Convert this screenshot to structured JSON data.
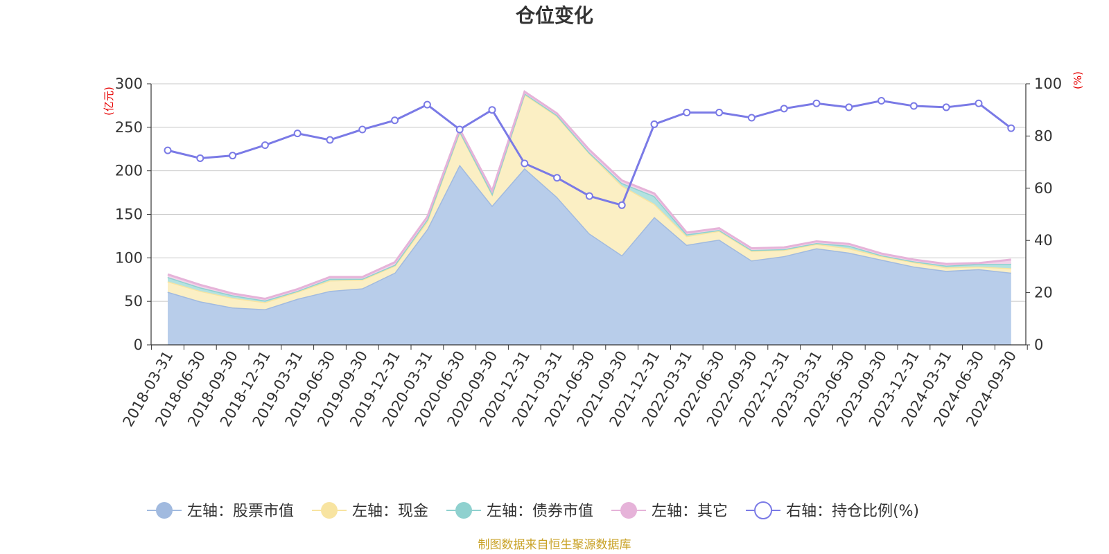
{
  "chart_data": {
    "type": "area",
    "title": "仓位变化",
    "footer": "制图数据来自恒生聚源数据库",
    "y_left": {
      "unit": "(亿元)",
      "min": 0,
      "max": 300,
      "ticks": [
        "0",
        "50",
        "100",
        "150",
        "200",
        "250",
        "300"
      ]
    },
    "y_right": {
      "unit": "(%)",
      "min": 0,
      "max": 100,
      "ticks": [
        "0",
        "20",
        "40",
        "60",
        "80",
        "100"
      ]
    },
    "categories": [
      "2018-03-31",
      "2018-06-30",
      "2018-09-30",
      "2018-12-31",
      "2019-03-31",
      "2019-06-30",
      "2019-09-30",
      "2019-12-31",
      "2020-03-31",
      "2020-06-30",
      "2020-09-30",
      "2020-12-31",
      "2021-03-31",
      "2021-06-30",
      "2021-09-30",
      "2021-12-31",
      "2022-03-31",
      "2022-06-30",
      "2022-09-30",
      "2022-12-31",
      "2023-03-31",
      "2023-06-30",
      "2023-09-30",
      "2023-12-31",
      "2024-03-31",
      "2024-06-30",
      "2024-09-30"
    ],
    "series": [
      {
        "name": "左轴：股票市值",
        "axis": "left",
        "kind": "stacked-area",
        "color": "#a1badf",
        "fill": "#b8cdea",
        "values": [
          61,
          50,
          43,
          41,
          53,
          62,
          65,
          83,
          133,
          207,
          160,
          203,
          170,
          128,
          103,
          147,
          115,
          121,
          97,
          102,
          111,
          106,
          98,
          90,
          85,
          87,
          83
        ]
      },
      {
        "name": "左轴：现金",
        "axis": "left",
        "kind": "stacked-area",
        "color": "#f8e4a1",
        "fill": "#fbefc4",
        "values": [
          12,
          12,
          11,
          8,
          8,
          12,
          10,
          8,
          9,
          38,
          13,
          85,
          93,
          92,
          80,
          15,
          10,
          10,
          11,
          7,
          5,
          5,
          4,
          5,
          4,
          3,
          5
        ]
      },
      {
        "name": "左轴：债券市值",
        "axis": "left",
        "kind": "stacked-area",
        "color": "#8fd1cf",
        "fill": "#b3e2e0",
        "values": [
          5,
          4,
          3,
          2,
          1,
          2,
          1,
          1,
          2,
          1,
          1,
          1,
          1,
          1,
          3,
          9,
          2,
          1,
          1,
          1,
          1,
          3,
          1,
          1,
          2,
          3,
          5
        ]
      },
      {
        "name": "左轴：其它",
        "axis": "left",
        "kind": "stacked-area",
        "color": "#e6b3d9",
        "fill": "#f1d3e9",
        "values": [
          3,
          3,
          2,
          2,
          2,
          2,
          2,
          3,
          3,
          2,
          3,
          2,
          2,
          3,
          3,
          3,
          2,
          2,
          2,
          2,
          2,
          2,
          2,
          2,
          2,
          1,
          5
        ]
      },
      {
        "name": "右轴：持仓比例(%)",
        "axis": "right",
        "kind": "line",
        "color": "#7a7ae6",
        "values": [
          74.5,
          71.5,
          72.5,
          76.5,
          81,
          78.5,
          82.5,
          86,
          92,
          82.5,
          90,
          69.5,
          64,
          57,
          53.5,
          84.5,
          89,
          89,
          87,
          90.5,
          92.5,
          91,
          93.5,
          91.5,
          91,
          92.5,
          83
        ]
      }
    ],
    "legend": {
      "position": "bottom"
    },
    "grid": true
  }
}
